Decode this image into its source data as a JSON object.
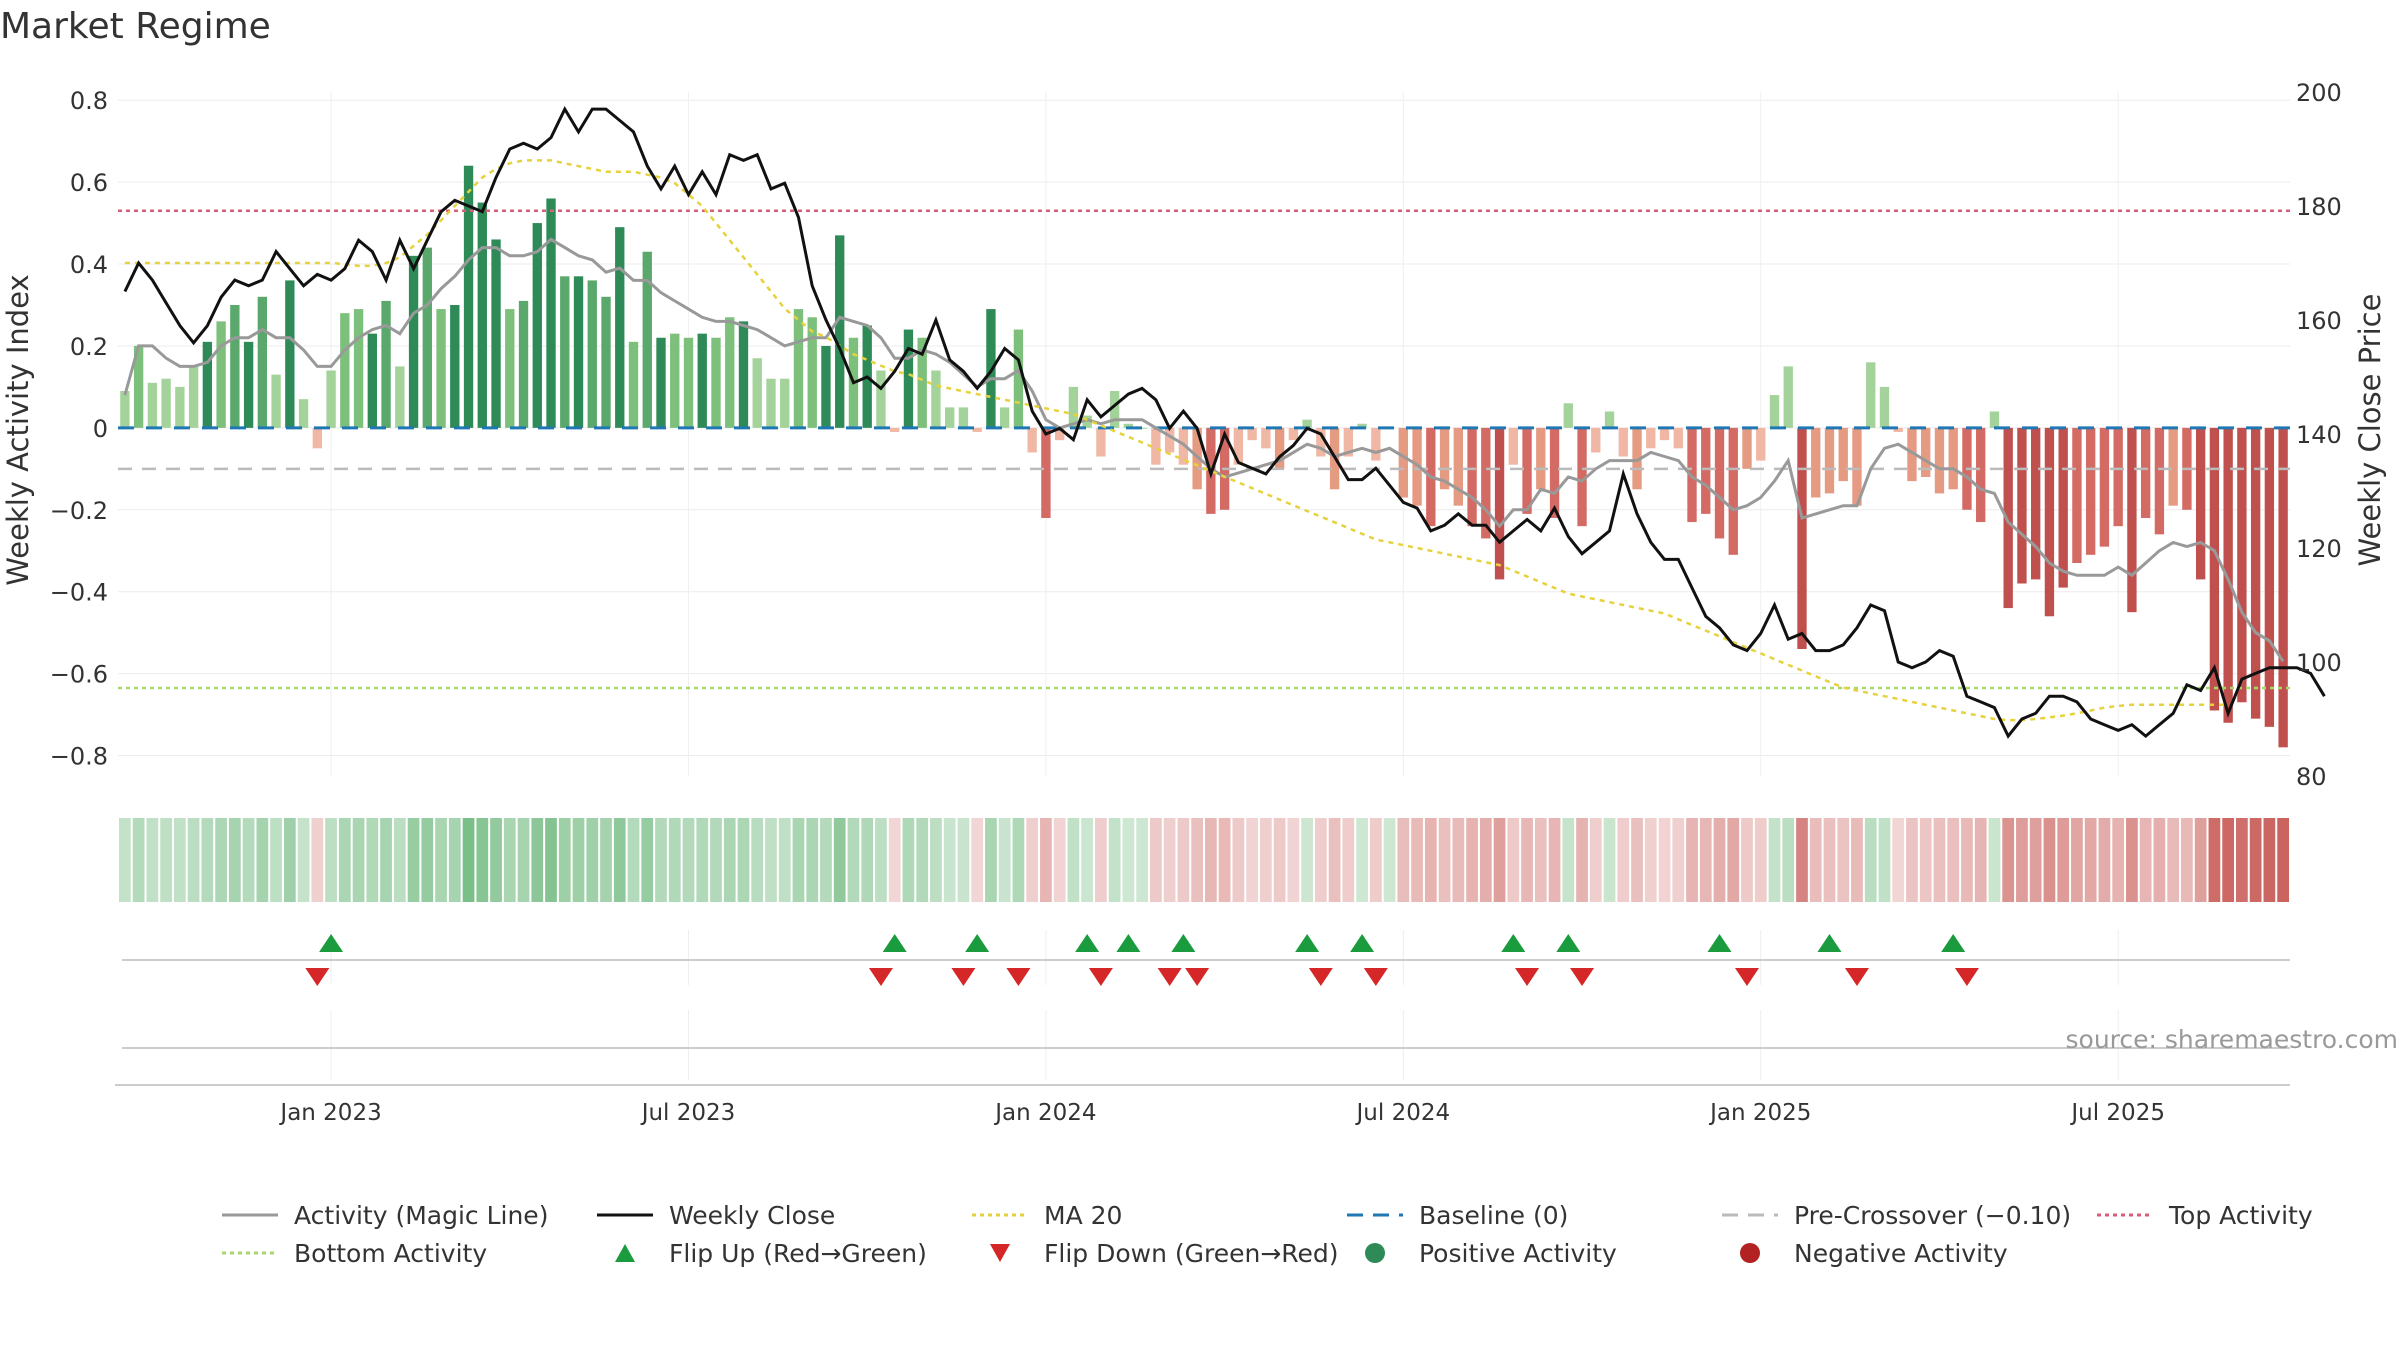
{
  "title": "Market Regime",
  "source_note": "source: sharemaestro.com",
  "colors": {
    "activity_line": "#999999",
    "close_line": "#111111",
    "ma_line": "#e6d23c",
    "baseline": "#1f77b4",
    "pre_crossover": "#bbbbbb",
    "top_activity": "#d9607a",
    "bottom_activity": "#a6d96a",
    "flip_up": "#1a9c3e",
    "flip_down": "#d62728",
    "positive": "#2e8b57",
    "negative": "#b22222"
  },
  "legend": [
    {
      "label": "Activity (Magic Line)",
      "symbol": "solid-line",
      "color": "#999999"
    },
    {
      "label": "Weekly Close",
      "symbol": "solid-line",
      "color": "#111111"
    },
    {
      "label": "MA 20",
      "symbol": "dotted-line",
      "color": "#e6d23c"
    },
    {
      "label": "Baseline (0)",
      "symbol": "dashed-line",
      "color": "#1f77b4"
    },
    {
      "label": "Pre-Crossover (−0.10)",
      "symbol": "dashed-line",
      "color": "#bbbbbb"
    },
    {
      "label": "Top Activity",
      "symbol": "dotted-line",
      "color": "#d9607a"
    },
    {
      "label": "Bottom Activity",
      "symbol": "dotted-line",
      "color": "#a6d96a"
    },
    {
      "label": "Flip Up (Red→Green)",
      "symbol": "triangle-up",
      "color": "#1a9c3e"
    },
    {
      "label": "Flip Down (Green→Red)",
      "symbol": "triangle-down",
      "color": "#d62728"
    },
    {
      "label": "Positive Activity",
      "symbol": "dot",
      "color": "#2e8b57"
    },
    {
      "label": "Negative Activity",
      "symbol": "dot",
      "color": "#b22222"
    }
  ],
  "chart_data": {
    "type": "bar",
    "title": "Market Regime",
    "xlabel": "",
    "ylabel": "Weekly Activity Index",
    "y2label": "Weekly Close Price",
    "ylim": [
      -0.85,
      0.82
    ],
    "y2lim": [
      80,
      200
    ],
    "y_ticks": [
      0.8,
      0.6,
      0.4,
      0.2,
      0,
      -0.2,
      -0.4,
      -0.6,
      -0.8
    ],
    "y_tick_labels": [
      "0.8",
      "0.6",
      "0.4",
      "0.2",
      "0",
      "−0.2",
      "−0.4",
      "−0.6",
      "−0.8"
    ],
    "y2_ticks": [
      200,
      180,
      160,
      140,
      120,
      100,
      80
    ],
    "x_tick_labels": [
      "Jan 2023",
      "Jul 2023",
      "Jan 2024",
      "Jul 2024",
      "Jan 2025",
      "Jul 2025"
    ],
    "x_tick_weeks": [
      15,
      41,
      67,
      93,
      119,
      145
    ],
    "reference_lines": {
      "top_activity": 0.53,
      "bottom_activity": -0.635,
      "pre_crossover": -0.1,
      "baseline": 0
    },
    "grid": true,
    "activity": [
      0.09,
      0.2,
      0.11,
      0.12,
      0.1,
      0.15,
      0.21,
      0.26,
      0.3,
      0.21,
      0.32,
      0.13,
      0.36,
      0.07,
      -0.05,
      0.14,
      0.28,
      0.29,
      0.23,
      0.31,
      0.15,
      0.42,
      0.44,
      0.29,
      0.3,
      0.64,
      0.55,
      0.46,
      0.29,
      0.31,
      0.5,
      0.56,
      0.37,
      0.37,
      0.36,
      0.32,
      0.49,
      0.21,
      0.43,
      0.22,
      0.23,
      0.22,
      0.23,
      0.22,
      0.27,
      0.26,
      0.17,
      0.12,
      0.12,
      0.29,
      0.27,
      0.2,
      0.47,
      0.22,
      0.25,
      0.14,
      -0.01,
      0.24,
      0.22,
      0.14,
      0.05,
      0.05,
      -0.01,
      0.29,
      0.05,
      0.24,
      -0.06,
      -0.22,
      -0.03,
      0.1,
      0.03,
      -0.07,
      0.09,
      0.01,
      0.0,
      -0.09,
      -0.06,
      -0.09,
      -0.15,
      -0.21,
      -0.2,
      -0.09,
      -0.03,
      -0.05,
      -0.1,
      -0.03,
      0.02,
      -0.07,
      -0.15,
      -0.07,
      0.01,
      -0.08,
      0.0,
      -0.17,
      -0.19,
      -0.24,
      -0.15,
      -0.19,
      -0.24,
      -0.27,
      -0.37,
      -0.09,
      -0.21,
      -0.15,
      -0.22,
      0.06,
      -0.24,
      -0.06,
      0.04,
      -0.07,
      -0.15,
      -0.05,
      -0.03,
      -0.05,
      -0.23,
      -0.21,
      -0.27,
      -0.31,
      -0.1,
      -0.08,
      0.08,
      0.15,
      -0.54,
      -0.17,
      -0.16,
      -0.13,
      -0.19,
      0.16,
      0.1,
      -0.01,
      -0.13,
      -0.12,
      -0.16,
      -0.15,
      -0.2,
      -0.23,
      0.04,
      -0.44,
      -0.38,
      -0.37,
      -0.46,
      -0.39,
      -0.33,
      -0.31,
      -0.29,
      -0.24,
      -0.45,
      -0.22,
      -0.26,
      -0.19,
      -0.2,
      -0.37,
      -0.69,
      -0.72,
      -0.67,
      -0.71,
      -0.73,
      -0.78
    ],
    "magic_line": [
      0.08,
      0.2,
      0.2,
      0.17,
      0.15,
      0.15,
      0.16,
      0.2,
      0.22,
      0.22,
      0.24,
      0.22,
      0.22,
      0.19,
      0.15,
      0.15,
      0.19,
      0.22,
      0.24,
      0.25,
      0.23,
      0.28,
      0.3,
      0.34,
      0.37,
      0.41,
      0.44,
      0.44,
      0.42,
      0.42,
      0.43,
      0.46,
      0.44,
      0.42,
      0.41,
      0.38,
      0.39,
      0.36,
      0.36,
      0.33,
      0.31,
      0.29,
      0.27,
      0.26,
      0.26,
      0.25,
      0.24,
      0.22,
      0.2,
      0.21,
      0.22,
      0.22,
      0.27,
      0.26,
      0.25,
      0.22,
      0.17,
      0.17,
      0.19,
      0.18,
      0.16,
      0.13,
      0.1,
      0.12,
      0.12,
      0.14,
      0.09,
      0.02,
      0.0,
      0.01,
      0.02,
      0.01,
      0.02,
      0.02,
      0.02,
      0.0,
      -0.02,
      -0.04,
      -0.07,
      -0.1,
      -0.12,
      -0.11,
      -0.1,
      -0.09,
      -0.08,
      -0.06,
      -0.04,
      -0.05,
      -0.07,
      -0.06,
      -0.05,
      -0.06,
      -0.05,
      -0.07,
      -0.09,
      -0.12,
      -0.13,
      -0.15,
      -0.17,
      -0.2,
      -0.24,
      -0.2,
      -0.2,
      -0.15,
      -0.16,
      -0.12,
      -0.13,
      -0.1,
      -0.08,
      -0.08,
      -0.08,
      -0.06,
      -0.07,
      -0.08,
      -0.12,
      -0.14,
      -0.17,
      -0.2,
      -0.19,
      -0.17,
      -0.13,
      -0.08,
      -0.22,
      -0.21,
      -0.2,
      -0.19,
      -0.19,
      -0.1,
      -0.05,
      -0.04,
      -0.06,
      -0.08,
      -0.1,
      -0.1,
      -0.12,
      -0.15,
      -0.16,
      -0.23,
      -0.26,
      -0.29,
      -0.33,
      -0.35,
      -0.36,
      -0.36,
      -0.36,
      -0.34,
      -0.36,
      -0.33,
      -0.3,
      -0.28,
      -0.29,
      -0.28,
      -0.3,
      -0.37,
      -0.45,
      -0.5,
      -0.52,
      -0.57
    ],
    "weekly_close": [
      165,
      170,
      167,
      163,
      159,
      156,
      159,
      164,
      167,
      166,
      167,
      172,
      169,
      166,
      168,
      167,
      169,
      174,
      172,
      167,
      174,
      169,
      174,
      179,
      181,
      180,
      179,
      185,
      190,
      191,
      190,
      192,
      197,
      193,
      197,
      197,
      195,
      193,
      187,
      183,
      187,
      182,
      186,
      182,
      189,
      188,
      189,
      183,
      184,
      178,
      166,
      160,
      155,
      149,
      150,
      148,
      151,
      155,
      154,
      160,
      153,
      151,
      148,
      151,
      155,
      153,
      144,
      140,
      141,
      139,
      146,
      143,
      145,
      147,
      148,
      146,
      141,
      144,
      141,
      133,
      140,
      135,
      134,
      133,
      136,
      138,
      141,
      140,
      136,
      132,
      132,
      134,
      131,
      128,
      127,
      123,
      124,
      126,
      124,
      124,
      121,
      123,
      125,
      123,
      127,
      122,
      119,
      121,
      123,
      133,
      126,
      121,
      118,
      118,
      113,
      108,
      106,
      103,
      102,
      105,
      110,
      104,
      105,
      102,
      102,
      103,
      106,
      110,
      109,
      100,
      99,
      100,
      102,
      101,
      94,
      93,
      92,
      87,
      90,
      91,
      94,
      94,
      93,
      90,
      89,
      88,
      89,
      87,
      89,
      91,
      96,
      95,
      99,
      91,
      97,
      98,
      99,
      99,
      99,
      98,
      94
    ],
    "ma20": [
      170,
      170,
      170,
      170,
      170,
      170,
      170,
      170,
      170,
      170,
      170,
      170,
      170,
      170,
      170,
      170,
      169.8,
      169.5,
      169.5,
      170,
      171,
      173,
      175,
      177.5,
      180,
      182.5,
      185,
      186.5,
      187.5,
      188,
      188,
      188,
      187.5,
      187,
      186.5,
      186,
      186,
      186,
      185.5,
      185,
      184,
      182,
      180,
      177,
      174,
      171,
      168,
      165,
      162,
      160,
      158,
      157,
      155.5,
      154,
      153,
      152,
      151,
      150.5,
      149.5,
      148.5,
      148,
      147.5,
      147,
      146.5,
      146,
      145.5,
      145,
      144.5,
      144,
      143.5,
      142.5,
      141.5,
      140.5,
      139.5,
      138.5,
      137.5,
      136.5,
      135.5,
      134.5,
      133.5,
      132.5,
      131.5,
      130.5,
      129.5,
      128.5,
      127.5,
      126.5,
      125.5,
      124.5,
      123.5,
      122.5,
      121.5,
      121,
      120.5,
      120,
      119.5,
      119,
      118.5,
      118,
      117.5,
      117,
      116,
      115,
      114,
      113,
      112,
      111.5,
      111,
      110.5,
      110,
      109.5,
      109,
      108.5,
      107.5,
      106.5,
      105.5,
      104.5,
      103.5,
      102.5,
      101.5,
      100.5,
      99.5,
      98.5,
      97.5,
      96.5,
      95.5,
      95,
      94.5,
      94,
      93.5,
      93,
      92.5,
      92,
      91.5,
      91,
      90.5,
      90,
      89.8,
      89.8,
      90,
      90.3,
      90.6,
      91,
      91.5,
      92,
      92.3,
      92.5,
      92.5,
      92.5,
      92.5,
      92.5,
      92.5,
      92.5,
      92.5
    ],
    "flip_up_weeks": [
      15,
      56,
      62,
      70,
      73,
      77,
      86,
      90,
      101,
      105,
      116,
      124,
      133
    ],
    "flip_down_weeks": [
      14,
      55,
      61,
      65,
      71,
      76,
      78,
      87,
      91,
      102,
      106,
      118,
      126,
      134
    ]
  }
}
